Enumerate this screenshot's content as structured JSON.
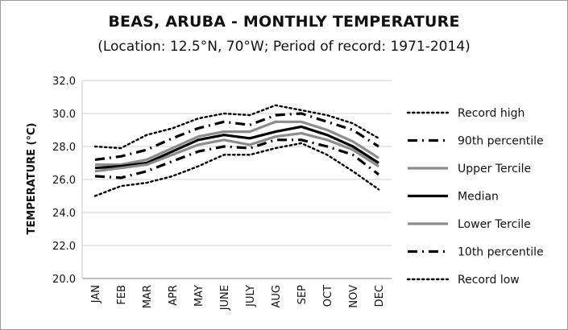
{
  "chart_data": {
    "type": "line",
    "title": "BEAS, ARUBA - MONTHLY TEMPERATURE",
    "subtitle": "(Location: 12.5°N, 70°W; Period of record: 1971-2014)",
    "ylabel": "TEMPERATURE (°C)",
    "xlabel": "",
    "categories": [
      "JAN",
      "FEB",
      "MAR",
      "APR",
      "MAY",
      "JUNE",
      "JULY",
      "AUG",
      "SEP",
      "OCT",
      "NOV",
      "DEC"
    ],
    "ylim": [
      20.0,
      32.0
    ],
    "yticks": [
      "20.0",
      "22.0",
      "24.0",
      "26.0",
      "28.0",
      "30.0",
      "32.0"
    ],
    "grid": "horizontal",
    "legend": "right",
    "series": [
      {
        "name": "Record high",
        "style": "dotted",
        "color": "#000000",
        "values": [
          28.0,
          27.9,
          28.7,
          29.1,
          29.7,
          30.0,
          29.9,
          30.5,
          30.2,
          29.9,
          29.4,
          28.5
        ]
      },
      {
        "name": "90th percentile",
        "style": "dashdot",
        "color": "#000000",
        "values": [
          27.2,
          27.4,
          27.8,
          28.5,
          29.1,
          29.5,
          29.3,
          29.9,
          30.0,
          29.5,
          29.0,
          28.0
        ]
      },
      {
        "name": "Upper Tercile",
        "style": "solid",
        "color": "#8c8c8c",
        "values": [
          26.9,
          26.9,
          27.2,
          27.9,
          28.6,
          28.9,
          28.9,
          29.5,
          29.5,
          29.0,
          28.3,
          27.3
        ]
      },
      {
        "name": "Median",
        "style": "solid",
        "color": "#000000",
        "values": [
          26.7,
          26.8,
          27.0,
          27.7,
          28.4,
          28.7,
          28.5,
          28.9,
          29.2,
          28.7,
          28.0,
          27.0
        ]
      },
      {
        "name": "Lower Tercile",
        "style": "solid",
        "color": "#8c8c8c",
        "values": [
          26.5,
          26.7,
          26.9,
          27.5,
          28.1,
          28.4,
          28.1,
          28.6,
          28.8,
          28.4,
          27.8,
          26.8
        ]
      },
      {
        "name": "10th percentile",
        "style": "dashdot",
        "color": "#000000",
        "values": [
          26.2,
          26.1,
          26.5,
          27.1,
          27.7,
          28.0,
          27.9,
          28.4,
          28.4,
          28.0,
          27.5,
          26.3
        ]
      },
      {
        "name": "Record low",
        "style": "dotted",
        "color": "#000000",
        "values": [
          25.0,
          25.6,
          25.8,
          26.2,
          26.8,
          27.5,
          27.5,
          27.9,
          28.2,
          27.5,
          26.5,
          25.4
        ]
      }
    ]
  }
}
